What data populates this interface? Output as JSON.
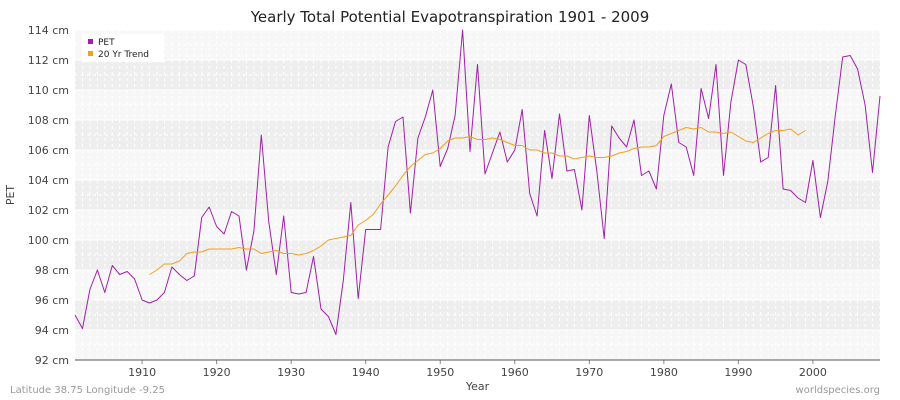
{
  "chart_data": {
    "type": "line",
    "title": "Yearly Total Potential Evapotranspiration 1901 - 2009",
    "xlabel": "Year",
    "ylabel": "PET",
    "xlim": [
      1901,
      2009
    ],
    "ylim": [
      92,
      114
    ],
    "x_ticks": [
      1910,
      1920,
      1930,
      1940,
      1950,
      1960,
      1970,
      1980,
      1990,
      2000
    ],
    "y_ticks": [
      92,
      94,
      96,
      98,
      100,
      102,
      104,
      106,
      108,
      110,
      112,
      114
    ],
    "y_tick_labels": [
      "92 cm",
      "94 cm",
      "96 cm",
      "98 cm",
      "100 cm",
      "102 cm",
      "104 cm",
      "106 cm",
      "108 cm",
      "110 cm",
      "112 cm",
      "114 cm"
    ],
    "grid": true,
    "legend_position": "top-left",
    "series": [
      {
        "name": "PET",
        "color": "#a020a8",
        "x_start": 1901,
        "values": [
          95.0,
          94.1,
          96.7,
          98.0,
          96.5,
          98.3,
          97.7,
          97.9,
          97.4,
          96.0,
          95.8,
          96.0,
          96.5,
          98.2,
          97.7,
          97.3,
          97.6,
          101.5,
          102.2,
          100.9,
          100.4,
          101.9,
          101.6,
          98.0,
          100.6,
          107.0,
          101.2,
          97.7,
          101.6,
          96.5,
          96.4,
          96.5,
          98.9,
          95.4,
          94.9,
          93.7,
          97.3,
          102.5,
          96.1,
          100.7,
          100.7,
          100.7,
          106.2,
          107.9,
          108.2,
          101.8,
          106.8,
          108.2,
          110.0,
          104.9,
          106.1,
          108.3,
          114.0,
          105.9,
          111.7,
          104.4,
          105.8,
          107.2,
          105.2,
          106.0,
          108.7,
          103.1,
          101.6,
          107.3,
          104.1,
          108.4,
          104.6,
          104.7,
          102.0,
          108.3,
          104.6,
          100.1,
          107.6,
          106.8,
          106.2,
          108.0,
          104.3,
          104.6,
          103.4,
          108.3,
          110.4,
          106.5,
          106.2,
          104.3,
          110.1,
          108.1,
          111.7,
          104.3,
          109.2,
          112.0,
          111.7,
          108.9,
          105.2,
          105.5,
          110.3,
          103.4,
          103.3,
          102.8,
          102.5,
          105.3,
          101.5,
          103.9,
          108.3,
          112.2,
          112.3,
          111.4,
          109.0,
          104.5,
          109.6
        ]
      },
      {
        "name": "20 Yr Trend",
        "color": "#f0a020",
        "x_start": 1911,
        "values": [
          97.7,
          98.0,
          98.4,
          98.4,
          98.6,
          99.1,
          99.2,
          99.2,
          99.4,
          99.4,
          99.4,
          99.4,
          99.5,
          99.4,
          99.4,
          99.1,
          99.2,
          99.3,
          99.1,
          99.1,
          99.0,
          99.1,
          99.3,
          99.6,
          100.0,
          100.1,
          100.2,
          100.3,
          101.0,
          101.3,
          101.7,
          102.4,
          103.0,
          103.6,
          104.3,
          104.9,
          105.3,
          105.7,
          105.8,
          106.1,
          106.6,
          106.8,
          106.8,
          106.9,
          106.7,
          106.7,
          106.8,
          106.7,
          106.5,
          106.3,
          106.3,
          106.0,
          106.0,
          105.8,
          105.8,
          105.6,
          105.6,
          105.4,
          105.5,
          105.6,
          105.5,
          105.5,
          105.6,
          105.8,
          105.9,
          106.1,
          106.2,
          106.2,
          106.3,
          106.9,
          107.1,
          107.3,
          107.5,
          107.4,
          107.5,
          107.2,
          107.2,
          107.1,
          107.2,
          106.9,
          106.6,
          106.5,
          106.8,
          107.1,
          107.3,
          107.3,
          107.4,
          107.0,
          107.3
        ]
      }
    ]
  },
  "footer": {
    "left": "Latitude 38.75 Longitude -9.25",
    "right": "worldspecies.org"
  }
}
